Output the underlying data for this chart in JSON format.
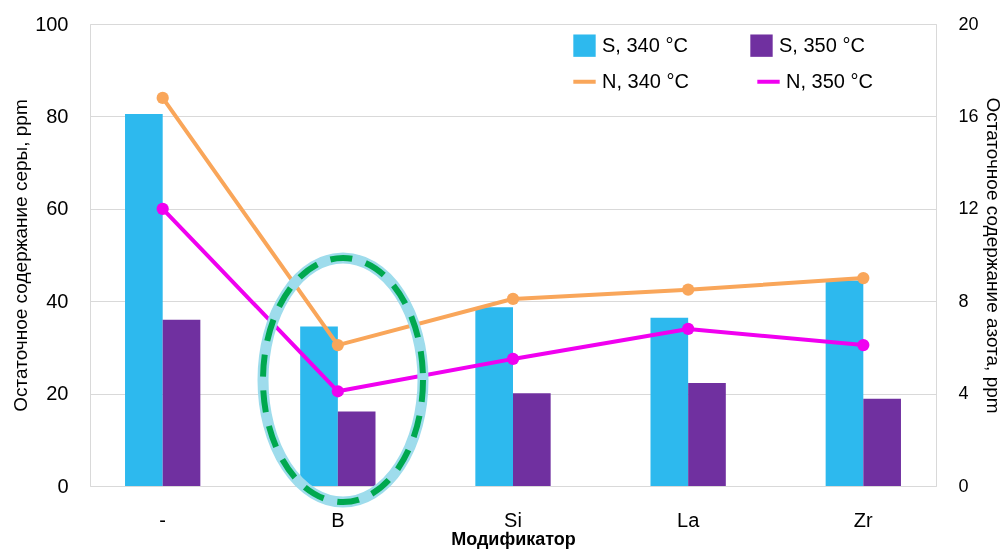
{
  "chart_data": {
    "type": "bar",
    "xlabel": "Модификатор",
    "ylabel": "Остаточное содержание серы, ppm",
    "y2label": "Остаточное содержание азота, ppm",
    "categories": [
      "-",
      "B",
      "Si",
      "La",
      "Zr"
    ],
    "series": [
      {
        "name": "S, 340 °C",
        "color": "#2db9ee",
        "values": [
          80.5,
          34.5,
          38.7,
          36.4,
          44.5
        ]
      },
      {
        "name": "S, 350 °C",
        "color": "#7030a0",
        "values": [
          36.0,
          16.1,
          20.1,
          22.3,
          18.9
        ]
      },
      {
        "name": "N, 340 °C",
        "type": "line",
        "axis": "y2",
        "color": "#f9a65a",
        "values": [
          16.8,
          6.1,
          8.1,
          8.5,
          9.0
        ]
      },
      {
        "name": "N, 350 °C",
        "type": "line",
        "axis": "y2",
        "color": "#f000f0",
        "values": [
          12.0,
          4.1,
          5.5,
          6.8,
          6.1
        ]
      }
    ],
    "ylim": [
      0,
      100
    ],
    "yticks": [
      0,
      20,
      40,
      60,
      80,
      100
    ],
    "y2lim": [
      0,
      20
    ],
    "y2ticks": [
      0,
      4,
      8,
      12,
      16,
      20
    ],
    "grid": "y",
    "legend": "top right",
    "marker": "circle",
    "line_style": "solid"
  }
}
